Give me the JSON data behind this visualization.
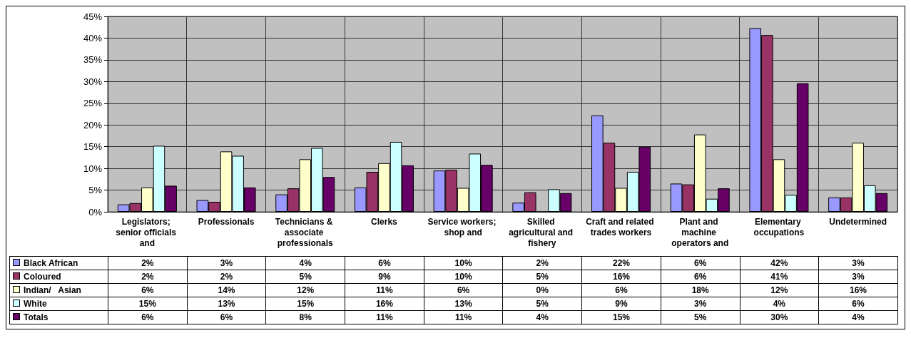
{
  "chart_data": {
    "type": "bar",
    "categories": [
      "Legislators; senior officials and",
      "Professionals",
      "Technicians & associate professionals",
      "Clerks",
      "Service workers; shop and",
      "Skilled agricultural and fishery",
      "Craft and related trades workers",
      "Plant and machine operators and",
      "Elementary occupations",
      "Undetermined"
    ],
    "series": [
      {
        "name": "Black African",
        "color": "#9999ff",
        "values": [
          1.7,
          2.7,
          4.0,
          5.6,
          9.5,
          2.1,
          22.2,
          6.5,
          42.3,
          3.3
        ],
        "value_labels": [
          "2%",
          "3%",
          "4%",
          "6%",
          "10%",
          "2%",
          "22%",
          "6%",
          "42%",
          "3%"
        ]
      },
      {
        "name": "Coloured",
        "color": "#993366",
        "values": [
          2.0,
          2.3,
          5.4,
          9.2,
          9.7,
          4.5,
          15.9,
          6.3,
          40.7,
          3.3
        ],
        "value_labels": [
          "2%",
          "2%",
          "5%",
          "9%",
          "10%",
          "5%",
          "16%",
          "6%",
          "41%",
          "3%"
        ]
      },
      {
        "name": "Indian/   Asian",
        "color": "#ffffcc",
        "values": [
          5.6,
          13.9,
          12.1,
          11.2,
          5.5,
          0,
          5.5,
          17.8,
          12.1,
          15.9
        ],
        "value_labels": [
          "6%",
          "14%",
          "12%",
          "11%",
          "6%",
          "0%",
          "6%",
          "18%",
          "12%",
          "16%"
        ]
      },
      {
        "name": "White",
        "color": "#ccffff",
        "values": [
          15.2,
          12.9,
          14.7,
          16.1,
          13.4,
          5.2,
          9.2,
          3.0,
          3.9,
          6.1
        ],
        "value_labels": [
          "15%",
          "13%",
          "15%",
          "16%",
          "13%",
          "5%",
          "9%",
          "3%",
          "4%",
          "6%"
        ]
      },
      {
        "name": "Totals",
        "color": "#660066",
        "values": [
          6.0,
          5.6,
          8.0,
          10.7,
          10.8,
          4.3,
          15.0,
          5.4,
          29.6,
          4.3
        ],
        "value_labels": [
          "6%",
          "6%",
          "8%",
          "11%",
          "11%",
          "4%",
          "15%",
          "5%",
          "30%",
          "4%"
        ]
      }
    ],
    "ylim": [
      0,
      45
    ],
    "yticks": [
      {
        "value": 0,
        "label": "0%"
      },
      {
        "value": 5,
        "label": "5%"
      },
      {
        "value": 10,
        "label": "10%"
      },
      {
        "value": 15,
        "label": "15%"
      },
      {
        "value": 20,
        "label": "20%"
      },
      {
        "value": 25,
        "label": "25%"
      },
      {
        "value": 30,
        "label": "30%"
      },
      {
        "value": 35,
        "label": "35%"
      },
      {
        "value": 40,
        "label": "40%"
      },
      {
        "value": 45,
        "label": "45%"
      }
    ],
    "grid": true,
    "legend": "bottom"
  }
}
